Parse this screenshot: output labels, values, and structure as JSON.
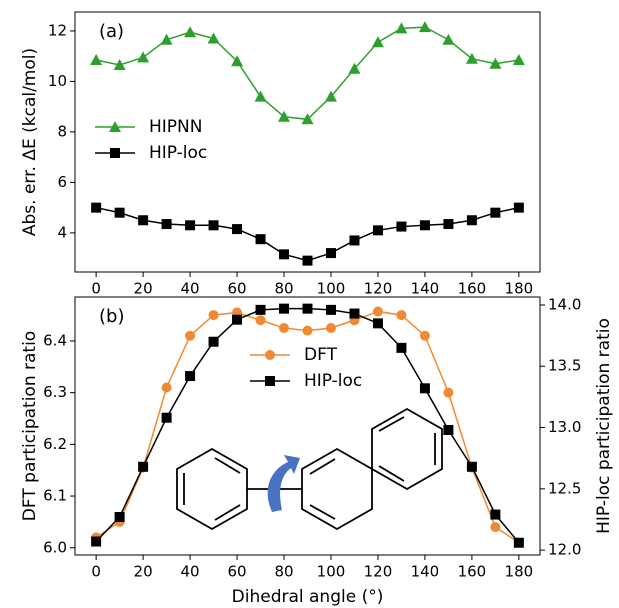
{
  "chart_data": [
    {
      "type": "line",
      "annotation": "(a)",
      "ylabel": "Abs. err. ΔE (kcal/mol)",
      "x": [
        0,
        10,
        20,
        30,
        40,
        50,
        60,
        70,
        80,
        90,
        100,
        110,
        120,
        130,
        140,
        150,
        160,
        170,
        180
      ],
      "series": [
        {
          "name": "HIPNN",
          "color": "#2ca02c",
          "marker": "triangle",
          "values": [
            10.85,
            10.65,
            10.95,
            11.65,
            11.95,
            11.7,
            10.8,
            9.4,
            8.6,
            8.5,
            9.4,
            10.5,
            11.55,
            12.1,
            12.15,
            11.65,
            10.9,
            10.7,
            10.85
          ]
        },
        {
          "name": "HIP-loc",
          "color": "#000000",
          "marker": "square",
          "values": [
            5.0,
            4.8,
            4.5,
            4.35,
            4.3,
            4.3,
            4.15,
            3.75,
            3.15,
            2.9,
            3.2,
            3.7,
            4.1,
            4.25,
            4.3,
            4.35,
            4.5,
            4.8,
            5.0
          ]
        }
      ],
      "xlim": [
        -9,
        189
      ],
      "xticks": [
        0,
        20,
        40,
        60,
        80,
        100,
        120,
        140,
        160,
        180
      ],
      "ylim": [
        2.45,
        12.75
      ],
      "yticks": [
        4,
        6,
        8,
        10,
        12
      ]
    },
    {
      "type": "line",
      "annotation": "(b)",
      "xlabel": "Dihedral angle (°)",
      "ylabel": "DFT participation ratio",
      "y2label": "HIP-loc participation ratio",
      "x": [
        0,
        10,
        20,
        30,
        40,
        50,
        60,
        70,
        80,
        90,
        100,
        110,
        120,
        130,
        140,
        150,
        160,
        170,
        180
      ],
      "series": [
        {
          "name": "DFT",
          "color": "#f08a32",
          "marker": "circle",
          "values": [
            6.02,
            6.05,
            6.155,
            6.31,
            6.41,
            6.45,
            6.455,
            6.44,
            6.425,
            6.42,
            6.425,
            6.44,
            6.457,
            6.45,
            6.41,
            6.3,
            6.155,
            6.04,
            6.01
          ]
        },
        {
          "name": "HIP-loc",
          "color": "#000000",
          "marker": "square",
          "axis": "y2",
          "values": [
            12.07,
            12.27,
            12.68,
            13.08,
            13.42,
            13.7,
            13.88,
            13.96,
            13.97,
            13.97,
            13.96,
            13.93,
            13.85,
            13.65,
            13.32,
            12.98,
            12.68,
            12.29,
            12.06
          ]
        }
      ],
      "xlim": [
        -9,
        189
      ],
      "xticks": [
        0,
        20,
        40,
        60,
        80,
        100,
        120,
        140,
        160,
        180
      ],
      "ylim": [
        5.986,
        6.485
      ],
      "yticks": [
        {
          "value": 6,
          "label": "6.0"
        },
        6.1,
        6.2,
        6.3,
        6.4
      ],
      "y2lim": [
        11.96,
        14.065
      ],
      "y2ticks": [
        {
          "value": 12,
          "label": "12.0"
        },
        12.5,
        {
          "value": 13,
          "label": "13.0"
        },
        13.5,
        {
          "value": 14,
          "label": "14.0"
        }
      ]
    }
  ]
}
